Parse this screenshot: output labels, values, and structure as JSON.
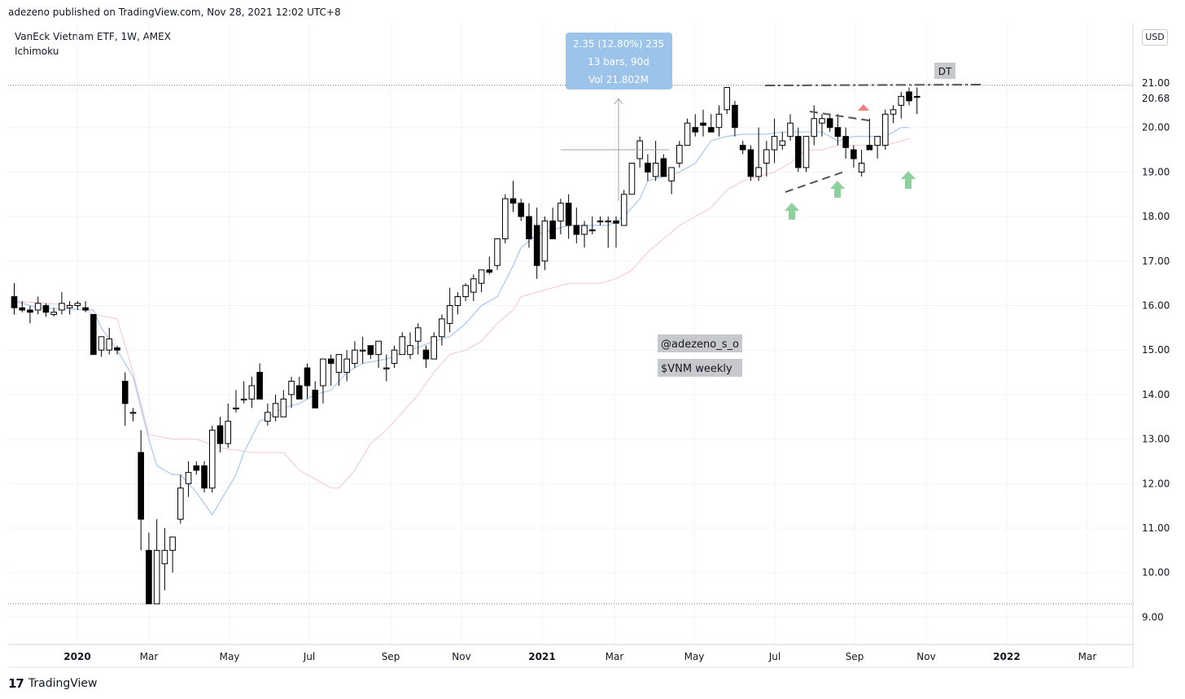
{
  "publisher": "adezeno published on TradingView.com, Nov 28, 2021 12:02 UTC+8",
  "legend": {
    "symbol": "VanEck Vietnam ETF, 1W, AMEX",
    "indicator": "Ichimoku"
  },
  "currency": "USD",
  "footer": {
    "logo": "17",
    "brand": "TradingView"
  },
  "measure_box": {
    "line1": "2.35 (12.80%) 235",
    "line2": "13 bars, 90d",
    "line3": "Vol 21.802M"
  },
  "annotations": {
    "dt_label": "DT",
    "handle": "@adezeno_s_o",
    "subtitle": "$VNM weekly"
  },
  "price_labels": {
    "current": "20.68"
  },
  "colors": {
    "up_fill": "#ffffff",
    "down_fill": "#000000",
    "tenkan": "#a8c7f0",
    "kijun": "#f5c6cf",
    "measure_bg": "#9cc3ea",
    "green_arrow": "#8fd19e",
    "red_arrow": "#f08080",
    "label_bg": "#c7c9cd"
  },
  "chart_data": {
    "type": "candlestick",
    "title": "",
    "timeframe": "1W",
    "ylim": [
      8.5,
      21.9
    ],
    "y_ticks": [
      "21.00",
      "20.00",
      "19.00",
      "18.00",
      "17.00",
      "16.00",
      "15.00",
      "14.00",
      "13.00",
      "12.00",
      "11.00",
      "10.00",
      "9.00"
    ],
    "x_ticks": [
      "2020",
      "Mar",
      "May",
      "Jul",
      "Sep",
      "Nov",
      "2021",
      "Mar",
      "May",
      "Jul",
      "Sep",
      "Nov",
      "2022",
      "Mar"
    ],
    "dotted_levels": [
      20.95,
      9.3
    ],
    "candles": [
      [
        16.2,
        16.5,
        15.8,
        15.95
      ],
      [
        15.95,
        16.1,
        15.85,
        15.9
      ],
      [
        15.9,
        16.0,
        15.6,
        15.85
      ],
      [
        15.9,
        16.2,
        15.8,
        16.05
      ],
      [
        16.0,
        16.05,
        15.75,
        15.85
      ],
      [
        15.8,
        15.95,
        15.75,
        15.85
      ],
      [
        15.9,
        16.3,
        15.8,
        16.05
      ],
      [
        15.95,
        16.1,
        15.8,
        16.0
      ],
      [
        16.0,
        16.1,
        15.9,
        16.05
      ],
      [
        15.95,
        16.1,
        15.85,
        15.9
      ],
      [
        15.8,
        15.8,
        14.9,
        14.9
      ],
      [
        15.0,
        15.2,
        14.85,
        15.3
      ],
      [
        15.0,
        15.5,
        14.9,
        15.25
      ],
      [
        15.05,
        15.1,
        14.9,
        15.0
      ],
      [
        14.3,
        14.5,
        13.3,
        13.8
      ],
      [
        13.6,
        13.7,
        13.4,
        13.6
      ],
      [
        12.7,
        13.2,
        10.5,
        11.2
      ],
      [
        10.5,
        10.9,
        9.3,
        9.3
      ],
      [
        9.3,
        11.2,
        9.3,
        10.5
      ],
      [
        10.2,
        11.0,
        9.6,
        10.5
      ],
      [
        10.5,
        10.8,
        10.0,
        10.8
      ],
      [
        11.2,
        12.2,
        11.1,
        11.9
      ],
      [
        12.0,
        12.5,
        11.7,
        12.25
      ],
      [
        12.4,
        12.5,
        12.2,
        12.3
      ],
      [
        12.4,
        12.5,
        11.8,
        11.9
      ],
      [
        11.9,
        13.3,
        11.8,
        13.2
      ],
      [
        13.3,
        13.5,
        12.7,
        12.9
      ],
      [
        12.9,
        13.8,
        12.8,
        13.4
      ],
      [
        13.7,
        14.1,
        13.6,
        13.7
      ],
      [
        13.9,
        14.3,
        13.8,
        13.9
      ],
      [
        13.9,
        14.4,
        13.7,
        14.2
      ],
      [
        14.5,
        14.7,
        13.9,
        13.9
      ],
      [
        13.4,
        13.8,
        13.3,
        13.6
      ],
      [
        13.5,
        14.0,
        13.4,
        13.8
      ],
      [
        13.5,
        14.1,
        13.6,
        13.9
      ],
      [
        14.0,
        14.4,
        13.7,
        14.3
      ],
      [
        14.2,
        14.4,
        13.9,
        13.9
      ],
      [
        14.6,
        14.7,
        13.9,
        14.2
      ],
      [
        14.1,
        14.3,
        13.7,
        13.7
      ],
      [
        14.2,
        14.8,
        13.8,
        14.8
      ],
      [
        14.8,
        14.9,
        14.2,
        14.7
      ],
      [
        14.5,
        14.9,
        14.2,
        14.9
      ],
      [
        14.5,
        15.0,
        14.3,
        14.8
      ],
      [
        14.7,
        15.2,
        14.6,
        15.0
      ],
      [
        15.0,
        15.3,
        14.7,
        15.0
      ],
      [
        15.1,
        15.1,
        14.8,
        14.9
      ],
      [
        14.9,
        15.2,
        14.6,
        15.2
      ],
      [
        14.6,
        14.9,
        14.3,
        14.6
      ],
      [
        14.7,
        15.1,
        14.6,
        15.0
      ],
      [
        14.9,
        15.4,
        14.9,
        15.3
      ],
      [
        14.9,
        15.4,
        14.8,
        15.1
      ],
      [
        15.2,
        15.6,
        14.9,
        15.5
      ],
      [
        15.0,
        15.1,
        14.6,
        14.8
      ],
      [
        14.8,
        15.4,
        14.8,
        15.3
      ],
      [
        15.3,
        15.8,
        15.1,
        15.7
      ],
      [
        15.6,
        16.4,
        15.4,
        16.0
      ],
      [
        16.0,
        16.3,
        15.8,
        16.2
      ],
      [
        16.2,
        16.5,
        16.1,
        16.45
      ],
      [
        16.3,
        16.7,
        16.1,
        16.6
      ],
      [
        16.5,
        16.8,
        16.3,
        16.8
      ],
      [
        16.8,
        17.1,
        16.7,
        16.75
      ],
      [
        16.9,
        17.5,
        16.8,
        17.5
      ],
      [
        17.5,
        18.5,
        17.4,
        18.4
      ],
      [
        18.4,
        18.8,
        18.1,
        18.3
      ],
      [
        18.3,
        18.4,
        17.9,
        18.0
      ],
      [
        18.0,
        18.3,
        17.3,
        17.5
      ],
      [
        17.8,
        18.2,
        16.6,
        16.9
      ],
      [
        17.0,
        18.0,
        16.8,
        17.9
      ],
      [
        17.9,
        18.2,
        17.5,
        17.5
      ],
      [
        17.9,
        18.4,
        17.6,
        18.3
      ],
      [
        18.3,
        18.5,
        17.5,
        17.8
      ],
      [
        17.8,
        18.2,
        17.4,
        17.6
      ],
      [
        17.6,
        17.9,
        17.3,
        17.8
      ],
      [
        17.7,
        18.0,
        17.6,
        17.7
      ],
      [
        17.9,
        18.0,
        17.8,
        17.9
      ],
      [
        17.9,
        18.0,
        17.3,
        17.9
      ],
      [
        17.9,
        18.0,
        17.3,
        17.85
      ],
      [
        17.8,
        18.6,
        17.8,
        18.5
      ],
      [
        18.5,
        19.1,
        18.5,
        19.2
      ],
      [
        19.3,
        19.8,
        19.1,
        19.7
      ],
      [
        19.2,
        19.4,
        18.8,
        19.0
      ],
      [
        18.9,
        19.7,
        18.8,
        19.2
      ],
      [
        19.3,
        19.4,
        18.9,
        18.9
      ],
      [
        18.8,
        19.0,
        18.5,
        19.1
      ],
      [
        19.2,
        19.7,
        19.1,
        19.6
      ],
      [
        19.6,
        20.2,
        19.6,
        20.1
      ],
      [
        20.0,
        20.3,
        19.8,
        19.9
      ],
      [
        20.1,
        20.4,
        19.8,
        20.05
      ],
      [
        20.0,
        20.3,
        19.9,
        19.9
      ],
      [
        20.0,
        20.5,
        19.8,
        20.3
      ],
      [
        20.4,
        20.9,
        20.3,
        20.9
      ],
      [
        20.5,
        20.6,
        19.8,
        20.0
      ],
      [
        19.6,
        19.7,
        19.4,
        19.5
      ],
      [
        19.5,
        19.6,
        18.8,
        18.9
      ],
      [
        18.9,
        20.0,
        18.8,
        19.1
      ],
      [
        19.2,
        19.7,
        18.9,
        19.5
      ],
      [
        19.5,
        20.2,
        19.2,
        19.8
      ],
      [
        19.6,
        19.9,
        19.5,
        19.7
      ],
      [
        19.8,
        20.3,
        19.7,
        20.1
      ],
      [
        19.8,
        20.0,
        19.0,
        19.1
      ],
      [
        19.1,
        19.8,
        19.0,
        19.8
      ],
      [
        19.8,
        20.5,
        19.6,
        20.2
      ],
      [
        20.1,
        20.3,
        19.8,
        20.2
      ],
      [
        20.2,
        20.3,
        19.9,
        20.0
      ],
      [
        20.0,
        20.3,
        19.6,
        19.8
      ],
      [
        19.8,
        20.0,
        19.3,
        19.55
      ],
      [
        19.5,
        19.6,
        19.1,
        19.3
      ],
      [
        19.0,
        19.5,
        18.9,
        19.2
      ],
      [
        19.6,
        20.2,
        19.5,
        19.5
      ],
      [
        19.6,
        19.8,
        19.3,
        19.8
      ],
      [
        19.6,
        20.4,
        19.5,
        20.3
      ],
      [
        20.3,
        20.5,
        20.1,
        20.4
      ],
      [
        20.5,
        20.8,
        20.2,
        20.7
      ],
      [
        20.8,
        20.9,
        20.5,
        20.6
      ],
      [
        20.7,
        20.9,
        20.3,
        20.68
      ]
    ],
    "tenkan": [
      [
        0,
        16.1
      ],
      [
        3,
        15.95
      ],
      [
        10,
        15.9
      ],
      [
        11,
        15.5
      ],
      [
        13,
        15.0
      ],
      [
        15,
        14.4
      ],
      [
        17,
        13.0
      ],
      [
        18,
        12.4
      ],
      [
        20,
        12.2
      ],
      [
        21,
        12.2
      ],
      [
        23,
        11.8
      ],
      [
        25,
        11.3
      ],
      [
        26,
        11.6
      ],
      [
        28,
        12.2
      ],
      [
        29,
        12.7
      ],
      [
        31,
        13.4
      ],
      [
        34,
        13.7
      ],
      [
        36,
        13.8
      ],
      [
        38,
        14.0
      ],
      [
        40,
        14.1
      ],
      [
        42,
        14.5
      ],
      [
        44,
        14.7
      ],
      [
        47,
        14.8
      ],
      [
        50,
        15.0
      ],
      [
        53,
        15.2
      ],
      [
        55,
        15.3
      ],
      [
        57,
        15.6
      ],
      [
        59,
        16.0
      ],
      [
        61,
        16.2
      ],
      [
        63,
        16.9
      ],
      [
        64,
        17.3
      ],
      [
        66,
        17.6
      ],
      [
        68,
        17.7
      ],
      [
        70,
        17.8
      ],
      [
        72,
        17.8
      ],
      [
        75,
        17.8
      ],
      [
        77,
        18.0
      ],
      [
        79,
        18.4
      ],
      [
        80,
        18.8
      ],
      [
        82,
        18.9
      ],
      [
        84,
        19.0
      ],
      [
        86,
        19.2
      ],
      [
        88,
        19.7
      ],
      [
        90,
        19.8
      ],
      [
        92,
        19.85
      ],
      [
        95,
        19.85
      ],
      [
        97,
        19.9
      ],
      [
        100,
        19.9
      ],
      [
        102,
        19.9
      ],
      [
        104,
        19.7
      ],
      [
        106,
        19.8
      ],
      [
        108,
        19.8
      ],
      [
        110,
        19.8
      ],
      [
        112,
        20.0
      ],
      [
        113,
        20.0
      ]
    ],
    "kijun": [
      [
        0,
        16.1
      ],
      [
        8,
        16.0
      ],
      [
        10,
        15.8
      ],
      [
        13,
        15.7
      ],
      [
        15,
        14.5
      ],
      [
        17,
        13.1
      ],
      [
        20,
        13.0
      ],
      [
        23,
        13.0
      ],
      [
        26,
        12.8
      ],
      [
        30,
        12.7
      ],
      [
        34,
        12.7
      ],
      [
        36,
        12.3
      ],
      [
        38,
        12.1
      ],
      [
        39,
        12.0
      ],
      [
        40,
        11.9
      ],
      [
        41,
        11.9
      ],
      [
        43,
        12.3
      ],
      [
        44,
        12.6
      ],
      [
        45,
        12.9
      ],
      [
        47,
        13.2
      ],
      [
        49,
        13.6
      ],
      [
        51,
        14.0
      ],
      [
        53,
        14.5
      ],
      [
        55,
        14.9
      ],
      [
        57,
        15.0
      ],
      [
        59,
        15.2
      ],
      [
        61,
        15.6
      ],
      [
        63,
        15.9
      ],
      [
        64,
        16.2
      ],
      [
        66,
        16.3
      ],
      [
        68,
        16.4
      ],
      [
        70,
        16.5
      ],
      [
        72,
        16.5
      ],
      [
        74,
        16.5
      ],
      [
        76,
        16.6
      ],
      [
        78,
        16.8
      ],
      [
        80,
        17.2
      ],
      [
        82,
        17.5
      ],
      [
        84,
        17.8
      ],
      [
        86,
        18.0
      ],
      [
        88,
        18.2
      ],
      [
        90,
        18.6
      ],
      [
        92,
        18.8
      ],
      [
        94,
        18.9
      ],
      [
        96,
        19.0
      ],
      [
        98,
        19.2
      ],
      [
        100,
        19.5
      ],
      [
        102,
        19.5
      ],
      [
        104,
        19.6
      ],
      [
        106,
        19.6
      ],
      [
        108,
        19.6
      ],
      [
        110,
        19.6
      ],
      [
        112,
        19.7
      ],
      [
        113,
        19.75
      ]
    ]
  }
}
